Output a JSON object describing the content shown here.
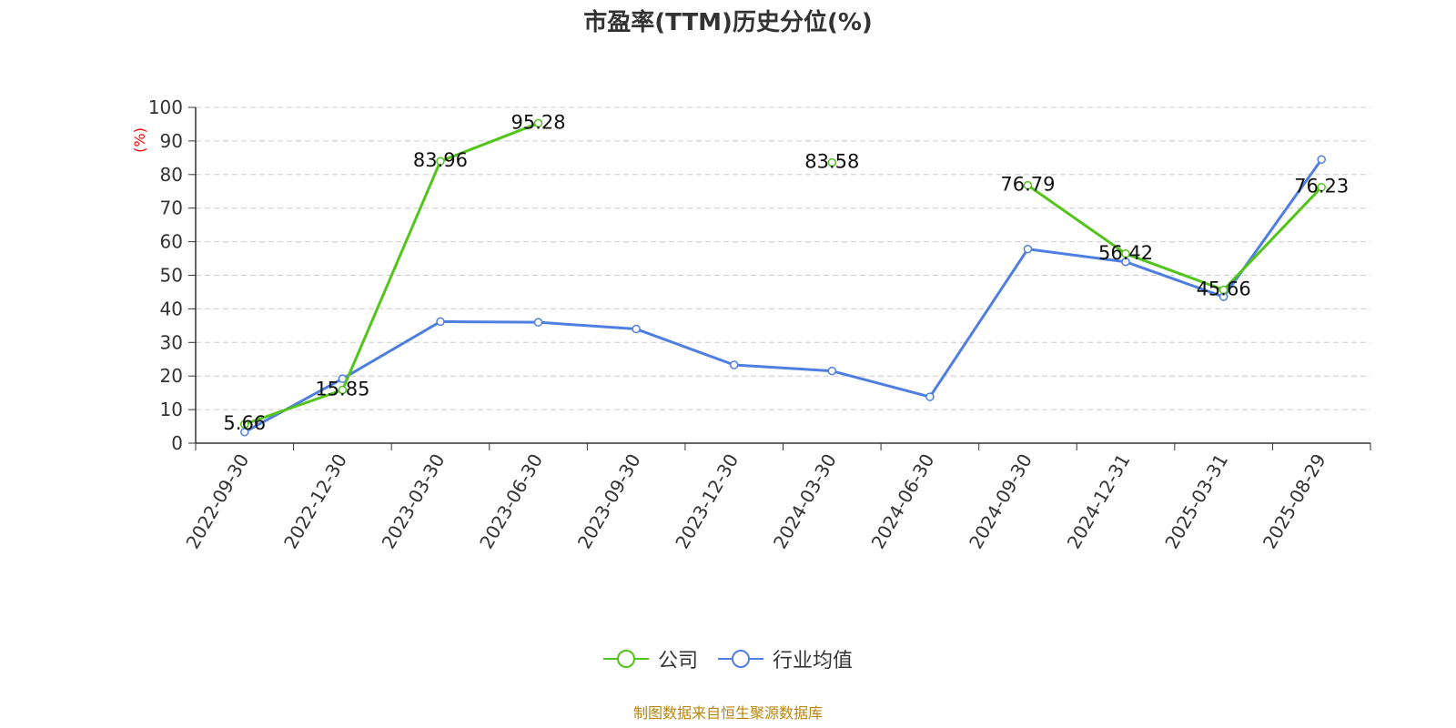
{
  "chart_data": {
    "type": "line",
    "title": "市盈率(TTM)历史分位(%)",
    "ylabel": "(%)",
    "ylim": [
      0,
      100
    ],
    "yticks": [
      0,
      10,
      20,
      30,
      40,
      50,
      60,
      70,
      80,
      90,
      100
    ],
    "grid": true,
    "categories": [
      "2022-09-30",
      "2022-12-30",
      "2023-03-30",
      "2023-06-30",
      "2023-09-30",
      "2023-12-30",
      "2024-03-30",
      "2024-06-30",
      "2024-09-30",
      "2024-12-31",
      "2025-03-31",
      "2025-08-29"
    ],
    "series": [
      {
        "name": "公司",
        "color": "#52c41a",
        "values": [
          5.66,
          15.85,
          83.96,
          95.28,
          null,
          null,
          83.58,
          null,
          76.79,
          56.42,
          45.66,
          76.23
        ],
        "data_labels": [
          "5.66",
          "15.85",
          "83.96",
          "95.28",
          "",
          "",
          "83.58",
          "",
          "76.79",
          "56.42",
          "45.66",
          "76.23"
        ]
      },
      {
        "name": "行业均值",
        "color": "#4e7fe0",
        "values": [
          3.3,
          19.2,
          36.2,
          36.0,
          34.0,
          23.3,
          21.5,
          13.8,
          57.8,
          54.0,
          43.6,
          84.5
        ]
      }
    ],
    "legend_position": "bottom-center"
  },
  "footer": {
    "source": "制图数据来自恒生聚源数据库"
  },
  "colors": {
    "axis": "#333333",
    "grid": "#cccccc",
    "ylabel": "#ff0000",
    "source": "#b8860b"
  }
}
